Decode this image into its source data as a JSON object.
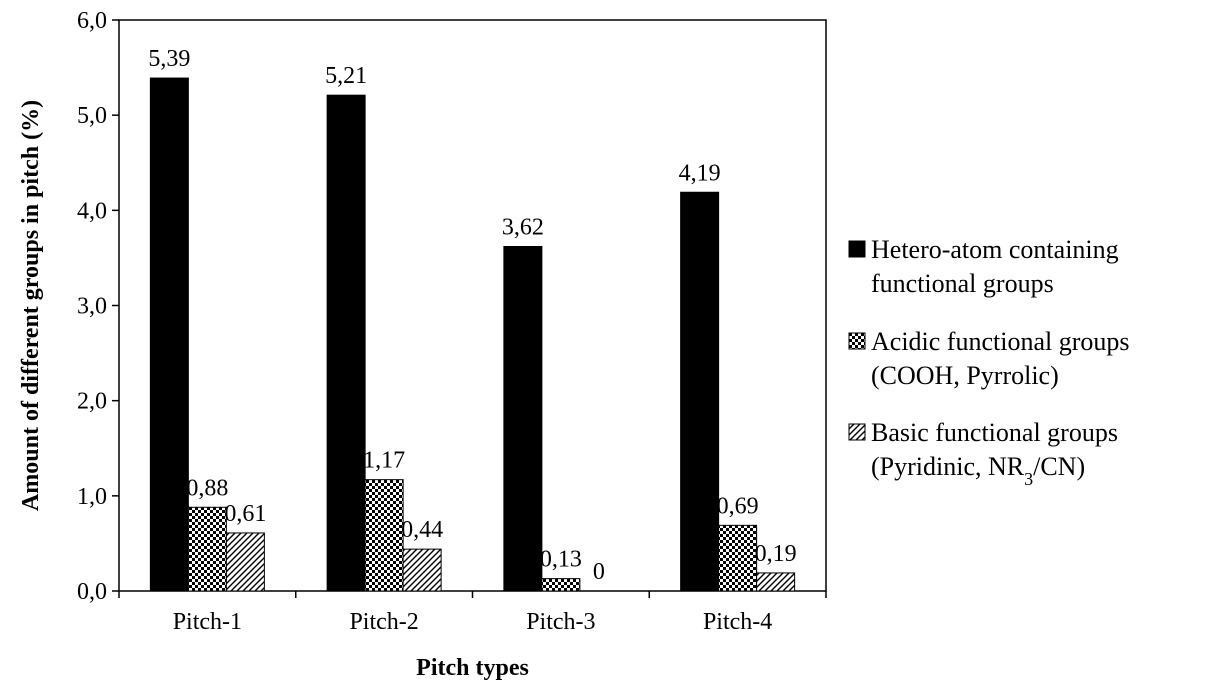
{
  "chart_data": {
    "type": "bar",
    "title": "",
    "xlabel": "Pitch types",
    "ylabel": "Amount of different groups in pitch (%)",
    "categories": [
      "Pitch-1",
      "Pitch-2",
      "Pitch-3",
      "Pitch-4"
    ],
    "ylim": [
      0,
      6
    ],
    "yticks": [
      "0,0",
      "1,0",
      "2,0",
      "3,0",
      "4,0",
      "5,0",
      "6,0"
    ],
    "grid": false,
    "legend_position": "right",
    "series": [
      {
        "legend_lines": [
          "Hetero-atom containing",
          "functional groups"
        ],
        "values": [
          5.39,
          5.21,
          3.62,
          4.19
        ],
        "labels": [
          "5,39",
          "5,21",
          "3,62",
          "4,19"
        ],
        "pattern": "solid",
        "color": "#000000"
      },
      {
        "legend_lines": [
          "Acidic functional groups",
          "(COOH, Pyrrolic)"
        ],
        "values": [
          0.88,
          1.17,
          0.13,
          0.69
        ],
        "labels": [
          "0,88",
          "1,17",
          "0,13",
          "0,69"
        ],
        "pattern": "crosshatch",
        "color": "#000000"
      },
      {
        "legend_lines": [
          "Basic functional groups",
          "(Pyridinic, NR",
          "3",
          "/CN)"
        ],
        "values": [
          0.61,
          0.44,
          0,
          0.19
        ],
        "labels": [
          "0,61",
          "0,44",
          "0",
          "0,19"
        ],
        "pattern": "diagonal",
        "color": "#000000"
      }
    ]
  }
}
